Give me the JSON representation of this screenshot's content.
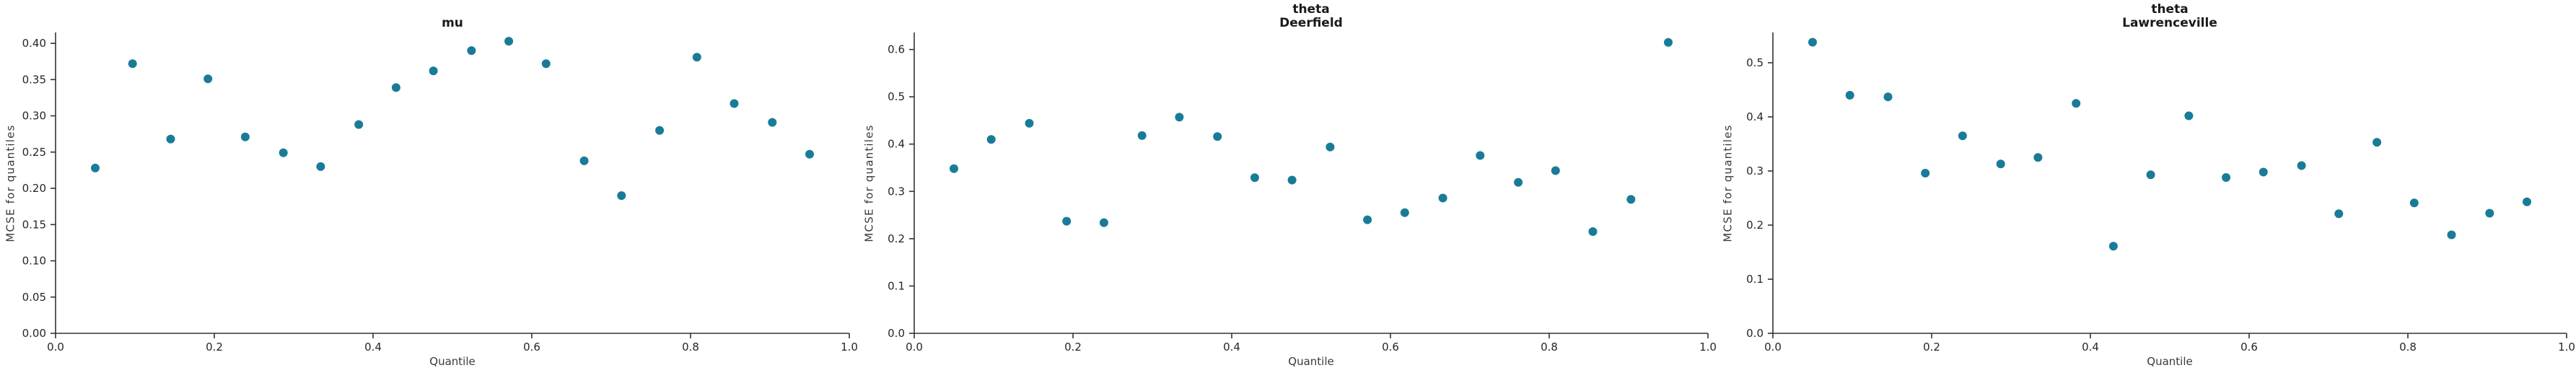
{
  "figure": {
    "background": "#ffffff",
    "dot_color": "#1a7b99",
    "spine_color": "#333333",
    "text_color": "#262626"
  },
  "chart_data": [
    {
      "type": "scatter",
      "title": "mu",
      "subtitle": "",
      "xlabel": "Quantile",
      "ylabel": "MCSE for quantiles",
      "legend": "none",
      "grid": false,
      "xlim": [
        0.0,
        1.0
      ],
      "ylim": [
        0.0,
        0.415
      ],
      "xticks": [
        "0.0",
        "0.2",
        "0.4",
        "0.6",
        "0.8",
        "1.0"
      ],
      "yticks": [
        "0.00",
        "0.05",
        "0.10",
        "0.15",
        "0.20",
        "0.25",
        "0.30",
        "0.35",
        "0.40"
      ],
      "x": [
        0.05,
        0.097,
        0.145,
        0.192,
        0.239,
        0.287,
        0.334,
        0.382,
        0.429,
        0.476,
        0.524,
        0.571,
        0.618,
        0.666,
        0.713,
        0.761,
        0.808,
        0.855,
        0.903,
        0.95
      ],
      "y": [
        0.228,
        0.372,
        0.268,
        0.351,
        0.271,
        0.249,
        0.23,
        0.288,
        0.339,
        0.362,
        0.39,
        0.403,
        0.372,
        0.238,
        0.19,
        0.28,
        0.381,
        0.317,
        0.291,
        0.247
      ]
    },
    {
      "type": "scatter",
      "title": "theta",
      "subtitle": "Deerfield",
      "xlabel": "Quantile",
      "ylabel": "MCSE for quantiles",
      "legend": "none",
      "grid": false,
      "xlim": [
        0.0,
        1.0
      ],
      "ylim": [
        0.0,
        0.636
      ],
      "xticks": [
        "0.0",
        "0.2",
        "0.4",
        "0.6",
        "0.8",
        "1.0"
      ],
      "yticks": [
        "0.0",
        "0.1",
        "0.2",
        "0.3",
        "0.4",
        "0.5",
        "0.6"
      ],
      "x": [
        0.05,
        0.097,
        0.145,
        0.192,
        0.239,
        0.287,
        0.334,
        0.382,
        0.429,
        0.476,
        0.524,
        0.571,
        0.618,
        0.666,
        0.713,
        0.761,
        0.808,
        0.855,
        0.903,
        0.95
      ],
      "y": [
        0.348,
        0.41,
        0.444,
        0.237,
        0.234,
        0.418,
        0.457,
        0.416,
        0.329,
        0.324,
        0.394,
        0.24,
        0.255,
        0.286,
        0.376,
        0.319,
        0.344,
        0.215,
        0.283,
        0.615
      ]
    },
    {
      "type": "scatter",
      "title": "theta",
      "subtitle": "Lawrenceville",
      "xlabel": "Quantile",
      "ylabel": "MCSE for quantiles",
      "legend": "none",
      "grid": false,
      "xlim": [
        0.0,
        1.0
      ],
      "ylim": [
        0.0,
        0.556
      ],
      "xticks": [
        "0.0",
        "0.2",
        "0.4",
        "0.6",
        "0.8",
        "1.0"
      ],
      "yticks": [
        "0.0",
        "0.1",
        "0.2",
        "0.3",
        "0.4",
        "0.5"
      ],
      "x": [
        0.05,
        0.097,
        0.145,
        0.192,
        0.239,
        0.287,
        0.334,
        0.382,
        0.429,
        0.476,
        0.524,
        0.571,
        0.618,
        0.666,
        0.713,
        0.761,
        0.808,
        0.855,
        0.903,
        0.95
      ],
      "y": [
        0.538,
        0.44,
        0.437,
        0.296,
        0.365,
        0.313,
        0.325,
        0.425,
        0.161,
        0.293,
        0.402,
        0.288,
        0.298,
        0.31,
        0.221,
        0.353,
        0.241,
        0.182,
        0.222,
        0.243
      ]
    }
  ]
}
